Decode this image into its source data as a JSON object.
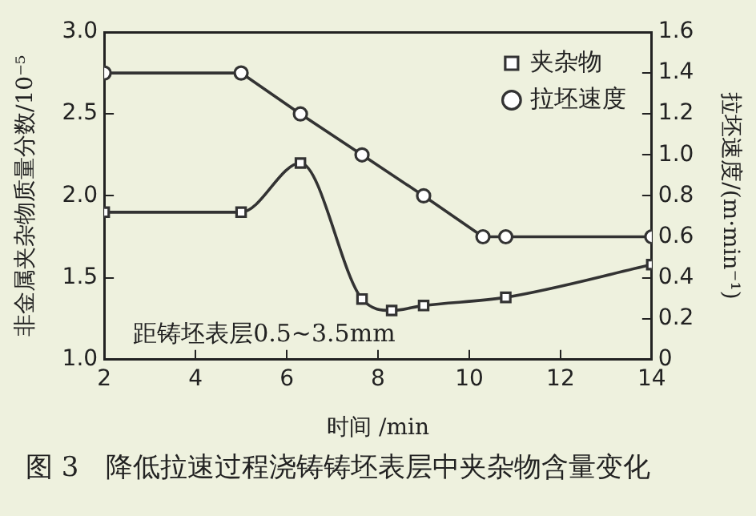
{
  "chart_data": {
    "type": "line",
    "xlabel": "时间 /min",
    "ylabel": "非金属夹杂物质量分数/10⁻⁵",
    "y2label": "拉坯速度/(m·min⁻¹)",
    "xlim": [
      2,
      14
    ],
    "xticks": [
      2,
      4,
      6,
      8,
      10,
      12,
      14
    ],
    "ylim": [
      1.0,
      3.0
    ],
    "yticks": [
      {
        "value": 1,
        "label": "1.0"
      },
      1.5,
      {
        "value": 2,
        "label": "2.0"
      },
      2.5,
      {
        "value": 3,
        "label": "3.0"
      }
    ],
    "y2lim": [
      0,
      1.6
    ],
    "y2ticks": [
      0,
      0.2,
      0.4,
      0.6,
      0.8,
      {
        "value": 1,
        "label": "1.0"
      },
      1.2,
      1.4,
      1.6
    ],
    "grid": false,
    "legend": "top right",
    "line_style": "solid",
    "series": [
      {
        "name": "夹杂物",
        "color": "#333333",
        "marker": "square",
        "x": [
          2,
          5,
          6.3,
          7.65,
          8.3,
          9.0,
          10.8,
          14
        ],
        "values": [
          1.9,
          1.9,
          2.2,
          1.37,
          1.3,
          1.33,
          1.38,
          1.58
        ]
      },
      {
        "name": "拉坯速度",
        "color": "#333333",
        "marker": "circle",
        "axis": "y2",
        "x": [
          2,
          5,
          6.3,
          7.65,
          9.0,
          10.3,
          10.8,
          14
        ],
        "values": [
          1.4,
          1.4,
          1.2,
          1.0,
          0.8,
          0.6,
          0.6,
          0.6
        ]
      }
    ],
    "annotations": [
      "距铸坯表层0.5~3.5mm",
      "图 3　降低拉速过程浇铸铸坯表层中夹杂物含量变化"
    ]
  }
}
